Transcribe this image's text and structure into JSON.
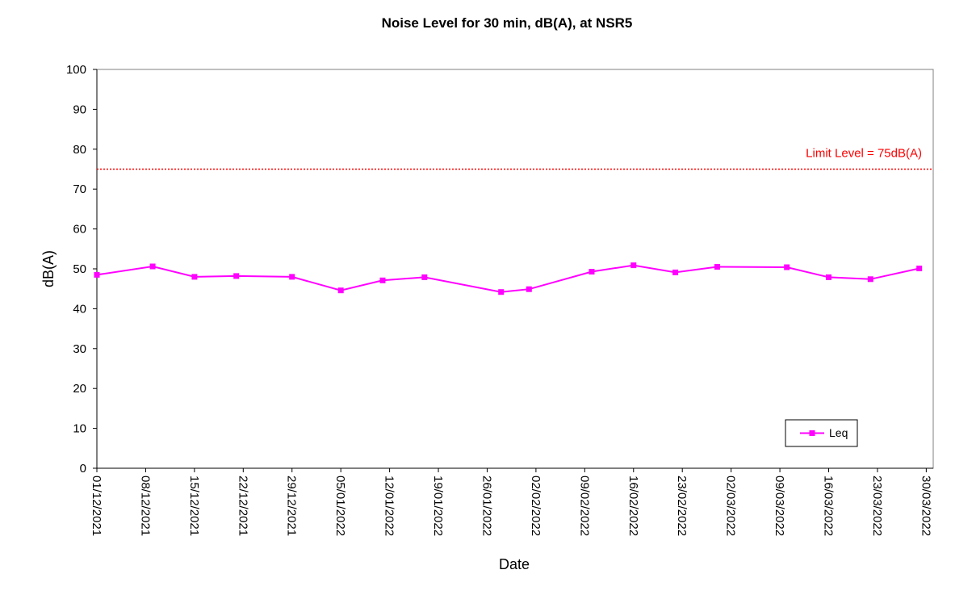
{
  "chart_data": {
    "type": "line",
    "title": "Noise Level for 30 min, dB(A), at NSR5",
    "xlabel": "Date",
    "ylabel": "dB(A)",
    "ylim": [
      0,
      100
    ],
    "yticks": [
      0,
      10,
      20,
      30,
      40,
      50,
      60,
      70,
      80,
      90,
      100
    ],
    "xlim": [
      "2021-12-01",
      "2022-03-31"
    ],
    "xticks": [
      "01/12/2021",
      "08/12/2021",
      "15/12/2021",
      "22/12/2021",
      "29/12/2021",
      "05/01/2022",
      "12/01/2022",
      "19/01/2022",
      "26/01/2022",
      "02/02/2022",
      "09/02/2022",
      "16/02/2022",
      "23/02/2022",
      "02/03/2022",
      "09/03/2022",
      "16/03/2022",
      "23/03/2022",
      "30/03/2022"
    ],
    "grid": false,
    "legend_position": "bottom-right",
    "limit_line": {
      "value": 75,
      "label": "Limit Level = 75dB(A)",
      "color": "#ff0000"
    },
    "series": [
      {
        "name": "Leq",
        "color": "#ff00ff",
        "marker": "square",
        "x": [
          "2021-12-01",
          "2021-12-09",
          "2021-12-15",
          "2021-12-21",
          "2021-12-29",
          "2022-01-05",
          "2022-01-11",
          "2022-01-17",
          "2022-01-28",
          "2022-02-01",
          "2022-02-10",
          "2022-02-16",
          "2022-02-22",
          "2022-02-28",
          "2022-03-10",
          "2022-03-16",
          "2022-03-22",
          "2022-03-29"
        ],
        "values": [
          48.5,
          50.6,
          48.0,
          48.2,
          48.0,
          44.6,
          47.1,
          47.9,
          44.2,
          44.9,
          49.3,
          50.9,
          49.1,
          50.5,
          50.4,
          47.9,
          47.4,
          50.1
        ]
      }
    ]
  }
}
